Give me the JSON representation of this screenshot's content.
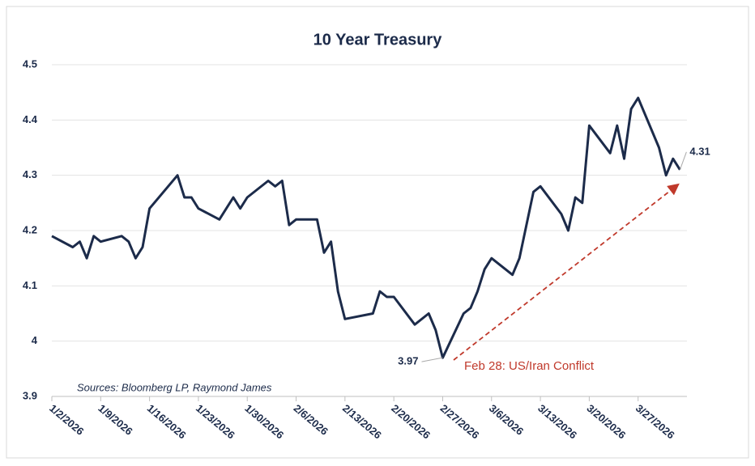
{
  "chart_data": {
    "type": "line",
    "title": "10 Year Treasury",
    "x": [
      "1/2/2026",
      "1/5/2026",
      "1/6/2026",
      "1/7/2026",
      "1/8/2026",
      "1/9/2026",
      "1/12/2026",
      "1/13/2026",
      "1/14/2026",
      "1/15/2026",
      "1/16/2026",
      "1/20/2026",
      "1/21/2026",
      "1/22/2026",
      "1/23/2026",
      "1/26/2026",
      "1/28/2026",
      "1/29/2026",
      "1/30/2026",
      "2/2/2026",
      "2/3/2026",
      "2/4/2026",
      "2/5/2026",
      "2/6/2026",
      "2/9/2026",
      "2/10/2026",
      "2/11/2026",
      "2/12/2026",
      "2/13/2026",
      "2/17/2026",
      "2/18/2026",
      "2/19/2026",
      "2/20/2026",
      "2/23/2026",
      "2/25/2026",
      "2/26/2026",
      "2/27/2026",
      "3/2/2026",
      "3/3/2026",
      "3/4/2026",
      "3/5/2026",
      "3/6/2026",
      "3/9/2026",
      "3/10/2026",
      "3/12/2026",
      "3/13/2026",
      "3/16/2026",
      "3/17/2026",
      "3/18/2026",
      "3/19/2026",
      "3/20/2026",
      "3/23/2026",
      "3/24/2026",
      "3/25/2026",
      "3/26/2026",
      "3/27/2026",
      "3/30/2026",
      "3/31/2026",
      "4/1/2026",
      "4/2/2026"
    ],
    "series": [
      {
        "color": "#1c2b4a",
        "values": [
          4.19,
          4.17,
          4.18,
          4.15,
          4.19,
          4.18,
          4.19,
          4.18,
          4.15,
          4.17,
          4.24,
          4.3,
          4.26,
          4.26,
          4.24,
          4.22,
          4.26,
          4.24,
          4.26,
          4.29,
          4.28,
          4.29,
          4.21,
          4.22,
          4.22,
          4.16,
          4.18,
          4.09,
          4.04,
          4.05,
          4.09,
          4.08,
          4.08,
          4.03,
          4.05,
          4.02,
          3.97,
          4.05,
          4.06,
          4.09,
          4.13,
          4.15,
          4.12,
          4.15,
          4.27,
          4.28,
          4.23,
          4.2,
          4.26,
          4.25,
          4.39,
          4.34,
          4.39,
          4.33,
          4.42,
          4.44,
          4.35,
          4.3,
          4.33,
          4.31
        ]
      }
    ],
    "xticks": [
      "1/2/2026",
      "1/9/2026",
      "1/16/2026",
      "1/23/2026",
      "1/30/2026",
      "2/6/2026",
      "2/13/2026",
      "2/20/2026",
      "2/27/2026",
      "3/6/2026",
      "3/13/2026",
      "3/20/2026",
      "3/27/2026"
    ],
    "ylim": [
      3.9,
      4.5
    ],
    "yticks": [
      3.9,
      4,
      4.1,
      4.2,
      4.3,
      4.4,
      4.5
    ],
    "grid": true,
    "labeled_points": [
      36,
      59
    ],
    "annotation": {
      "text": "Feb 28: US/Iran Conflict",
      "color": "#c0392b"
    },
    "source": "Sources: Bloomberg LP, Raymond James"
  }
}
